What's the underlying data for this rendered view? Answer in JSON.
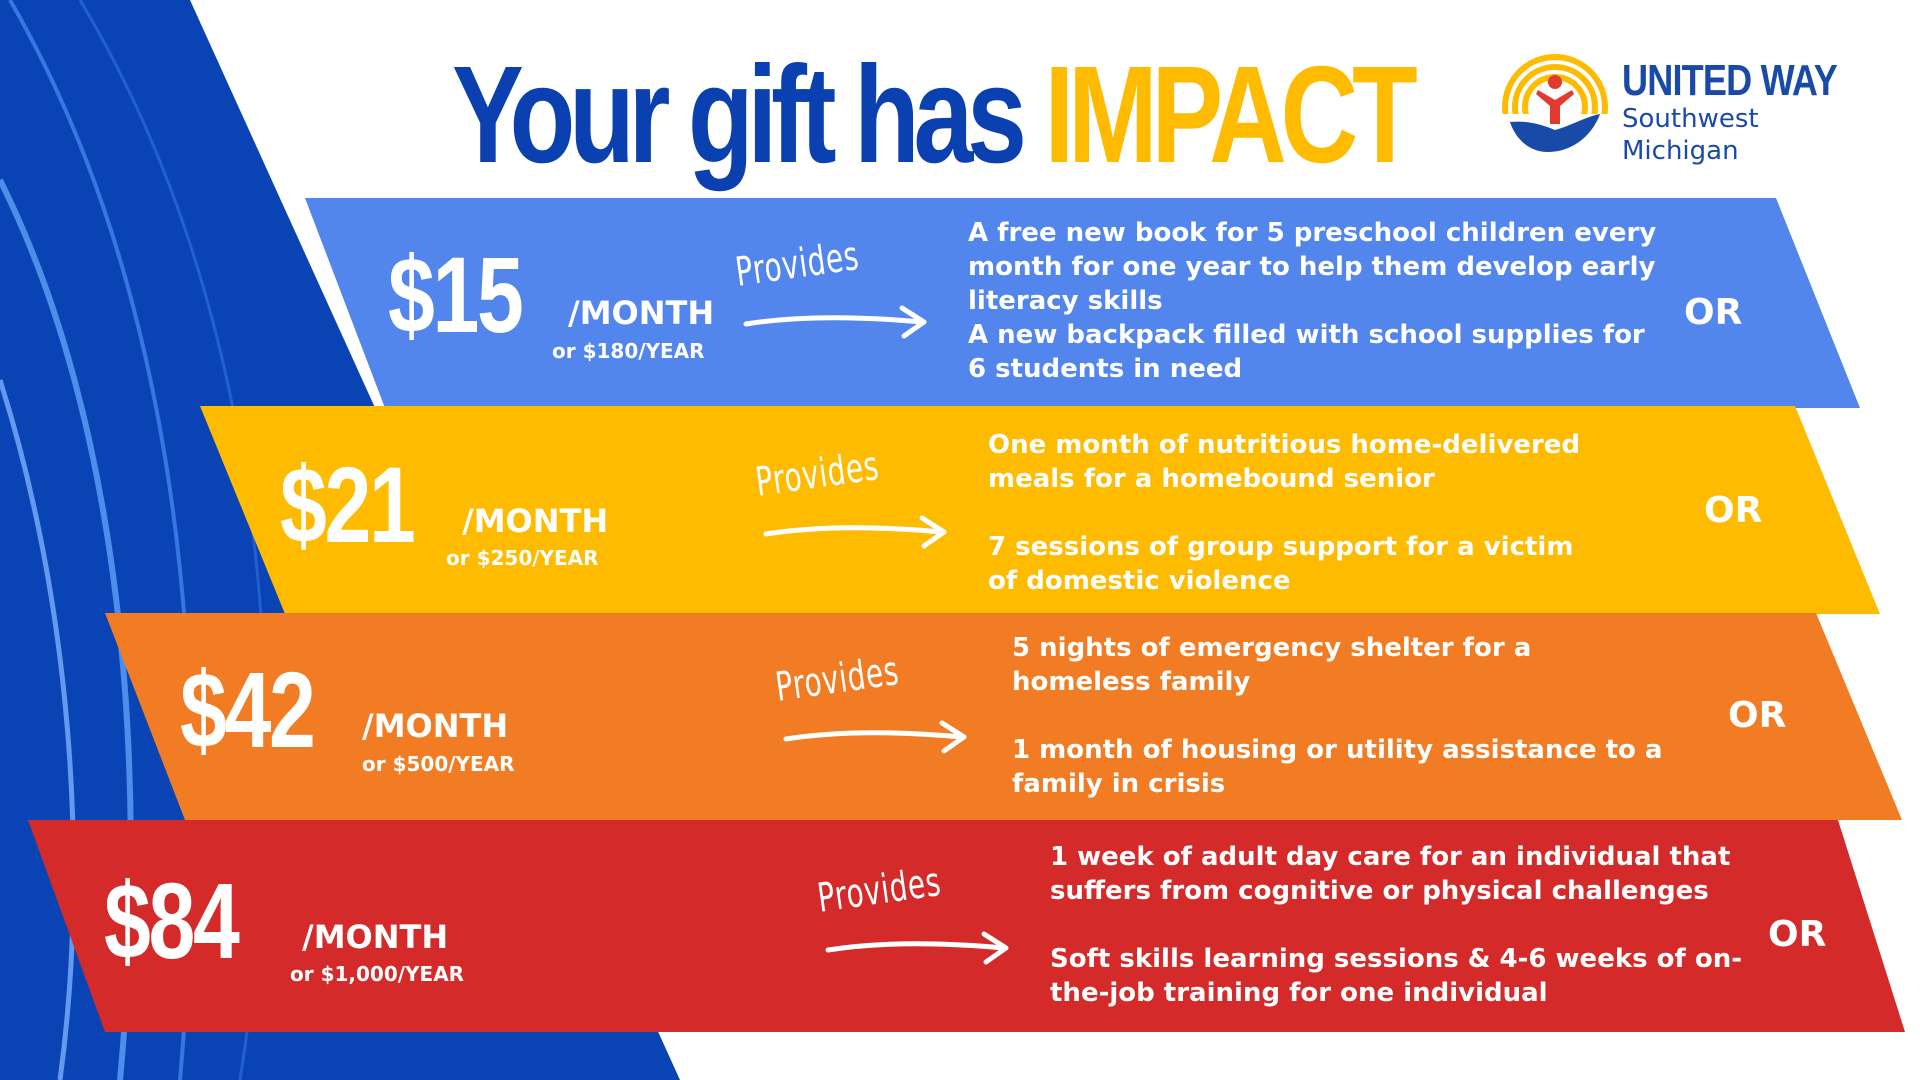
{
  "headline": {
    "part1": "Your gift has ",
    "part2": "IMPACT"
  },
  "logo": {
    "name": "UNITED WAY",
    "line1": "Southwest",
    "line2": "Michigan",
    "icon": "united-way-hand-figure-icon"
  },
  "colors": {
    "blue_headline": "#0a40b0",
    "gold": "#ffbb00",
    "tier1": "#5286ed",
    "tier2": "#ffbb00",
    "tier3": "#f27c24",
    "tier4": "#d42a2a"
  },
  "provides_label": "Provides",
  "or_label": "OR",
  "tiers": [
    {
      "amount": "$15",
      "per_month": "/MONTH",
      "per_year": "or $180/YEAR",
      "option1": "A free new book for 5 preschool children every month for one year to help them develop early literacy skills",
      "option2": "A new backpack filled with school supplies for 6 students in need"
    },
    {
      "amount": "$21",
      "per_month": "/MONTH",
      "per_year": "or $250/YEAR",
      "option1": "One month of nutritious home-delivered meals for a homebound senior",
      "option2": "7 sessions of group support for a victim of domestic violence"
    },
    {
      "amount": "$42",
      "per_month": "/MONTH",
      "per_year": "or $500/YEAR",
      "option1": "5 nights of emergency shelter for a homeless family",
      "option2": "1 month of housing or utility assistance to a family in crisis"
    },
    {
      "amount": "$84",
      "per_month": "/MONTH",
      "per_year": "or $1,000/YEAR",
      "option1": "1 week of adult day care for an individual that suffers from cognitive or physical challenges",
      "option2": "Soft skills learning sessions & 4-6 weeks of on-the-job training for one individual"
    }
  ]
}
